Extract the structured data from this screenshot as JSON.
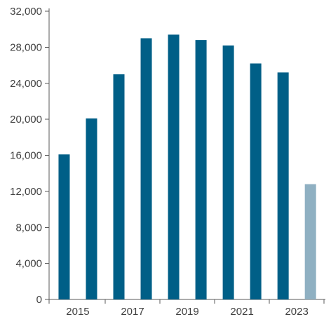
{
  "chart_data": {
    "type": "bar",
    "title": "",
    "xlabel": "",
    "ylabel": "",
    "categories": [
      "2015",
      "2016",
      "2017",
      "2018",
      "2019",
      "2020",
      "2021",
      "2022",
      "2023",
      "2024"
    ],
    "x_tick_labels": [
      "2015",
      "",
      "2017",
      "",
      "2019",
      "",
      "2021",
      "",
      "2023",
      ""
    ],
    "values": [
      16100,
      20100,
      25000,
      29000,
      29400,
      28800,
      28200,
      26200,
      25200,
      12800
    ],
    "bar_colors": [
      "#005f87",
      "#005f87",
      "#005f87",
      "#005f87",
      "#005f87",
      "#005f87",
      "#005f87",
      "#005f87",
      "#005f87",
      "#8fb0c2"
    ],
    "ylim": [
      0,
      32000
    ],
    "y_ticks": [
      0,
      4000,
      8000,
      12000,
      16000,
      20000,
      24000,
      28000,
      32000
    ],
    "y_tick_labels": [
      "0",
      "4,000",
      "8,000",
      "12,000",
      "16,000",
      "20,000",
      "24,000",
      "28,000",
      "32,000"
    ],
    "grid": false,
    "legend": "none"
  }
}
